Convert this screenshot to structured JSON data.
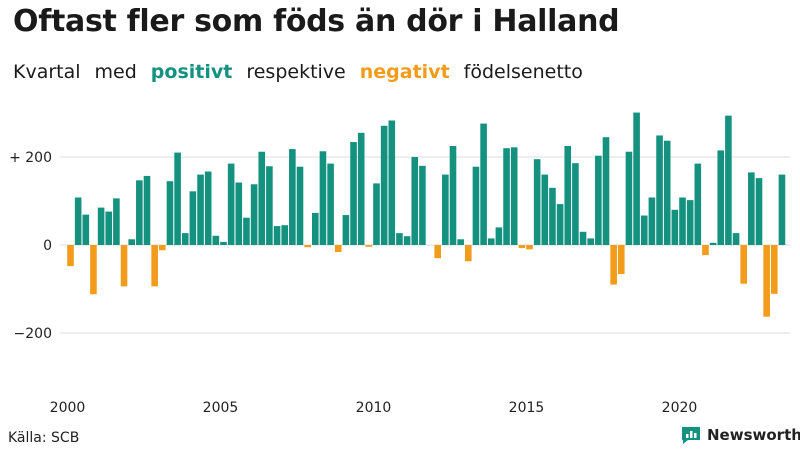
{
  "header": {
    "title": "Oftast fler som föds än dör i Halland",
    "subtitle": {
      "part1": "Kvartal",
      "part2": "med",
      "positive_word": "positivt",
      "part3": "respektive",
      "negative_word": "negativt",
      "part4": "födelsenetto"
    }
  },
  "footer": {
    "source": "Källa: SCB",
    "brand": "Newsworthy",
    "brand_icon": "bar-chart-speech-icon"
  },
  "colors": {
    "positive": "#159180",
    "negative": "#f39c1c",
    "grid": "#dddddd",
    "brand": "#159180"
  },
  "chart_data": {
    "type": "bar",
    "title": "Oftast fler som föds än dör i Halland",
    "subtitle": "Kvartal med positivt respektive negativt födelsenetto",
    "x_start_year": 2000,
    "quarters_per_year": 4,
    "xlabel": "",
    "ylabel": "",
    "ylim": [
      -300,
      300
    ],
    "y_ticks": [
      {
        "value": 200,
        "label": "+ 200"
      },
      {
        "value": 0,
        "label": "0"
      },
      {
        "value": -200,
        "label": "−200"
      }
    ],
    "x_ticks": [
      "2000",
      "2005",
      "2010",
      "2015",
      "2020"
    ],
    "grid": true,
    "values": [
      -48,
      108,
      69,
      -112,
      85,
      76,
      106,
      -94,
      13,
      147,
      157,
      -94,
      -12,
      145,
      210,
      27,
      122,
      160,
      167,
      21,
      7,
      185,
      142,
      62,
      138,
      212,
      179,
      43,
      45,
      218,
      178,
      -5,
      73,
      213,
      185,
      -16,
      68,
      234,
      255,
      -4,
      140,
      271,
      283,
      27,
      20,
      200,
      180,
      0,
      -30,
      160,
      225,
      13,
      -37,
      178,
      276,
      15,
      40,
      220,
      222,
      -7,
      -10,
      195,
      160,
      130,
      93,
      225,
      186,
      30,
      15,
      203,
      245,
      -90,
      -66,
      212,
      301,
      67,
      108,
      249,
      237,
      80,
      108,
      102,
      185,
      -23,
      5,
      215,
      294,
      27,
      -88,
      165,
      152,
      -163,
      -111,
      160
    ]
  }
}
